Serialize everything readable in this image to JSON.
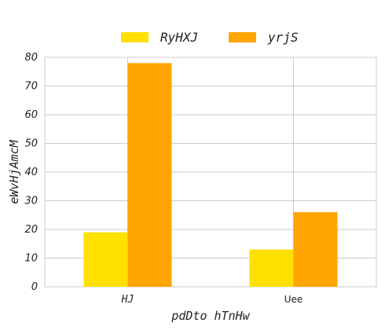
{
  "chart_data": {
    "type": "bar",
    "categories": [
      "HJ",
      "Uee"
    ],
    "series": [
      {
        "name": "RyHXJ",
        "values": [
          19,
          13
        ],
        "color": "#FFE000"
      },
      {
        "name": "yrjS",
        "values": [
          78,
          26
        ],
        "color": "#FFA500"
      }
    ],
    "xlabel": "pdDto hTnHw",
    "ylabel": "eWvHjAmcM",
    "ylim": [
      0,
      80
    ],
    "yticks": [
      0,
      10,
      20,
      30,
      40,
      50,
      60,
      70,
      80
    ],
    "grid": true,
    "legend_position": "top-center"
  }
}
